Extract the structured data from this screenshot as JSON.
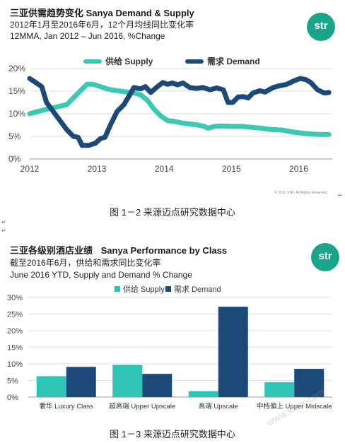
{
  "chart1": {
    "title": "三亚供需趋势变化 Sanya Demand & Supply",
    "subtitle_cn": "2012年1月至2016年6月，12个月均线同比变化率",
    "subtitle_en": "12MMA, Jan 2012 – Jun 2016, %Change",
    "logo_text": "str",
    "copyright": "© 2016 STR. All Rights Reserved.",
    "caption": "图 1－2  来源迈点研究数据中心",
    "colors": {
      "supply": "#3cc9b4",
      "demand": "#1b4a7a"
    }
  },
  "chart2": {
    "title_cn": "三亚各级别酒店业绩",
    "title_en": "Sanya Performance by Class",
    "subtitle_cn": "截至2016年6月，供给和需求同比变化率",
    "subtitle_en": "June 2016 YTD, Supply and Demand  % Change",
    "logo_text": "str",
    "caption": "图 1－3  来源迈点研究数据中心",
    "colors": {
      "supply": "#2ec4b6",
      "demand": "#1b4a7a"
    }
  },
  "watermark": "www.xxxx.com",
  "chart_data": [
    {
      "type": "line",
      "x_ticks": [
        "2012",
        "2013",
        "2014",
        "2015",
        "2016"
      ],
      "ylim": [
        0,
        20
      ],
      "y_ticks": [
        "0%",
        "5%",
        "10%",
        "15%",
        "20%"
      ],
      "grid": true,
      "legend_position": "top-center",
      "series": [
        {
          "name": "供给 Supply",
          "points": [
            [
              2012.0,
              10
            ],
            [
              2012.1,
              10.4
            ],
            [
              2012.25,
              11
            ],
            [
              2012.4,
              11.5
            ],
            [
              2012.55,
              12
            ],
            [
              2012.65,
              13.5
            ],
            [
              2012.75,
              15
            ],
            [
              2012.85,
              16.5
            ],
            [
              2012.95,
              16.5
            ],
            [
              2013.05,
              16
            ],
            [
              2013.15,
              15.5
            ],
            [
              2013.25,
              15.2
            ],
            [
              2013.35,
              15
            ],
            [
              2013.45,
              14.8
            ],
            [
              2013.55,
              14.6
            ],
            [
              2013.65,
              14.2
            ],
            [
              2013.75,
              13
            ],
            [
              2013.85,
              11
            ],
            [
              2013.95,
              9.5
            ],
            [
              2014.05,
              8.5
            ],
            [
              2014.15,
              8.3
            ],
            [
              2014.25,
              8
            ],
            [
              2014.4,
              7.7
            ],
            [
              2014.5,
              7.5
            ],
            [
              2014.6,
              7.2
            ],
            [
              2014.65,
              6.8
            ],
            [
              2014.75,
              7.2
            ],
            [
              2014.85,
              7.3
            ],
            [
              2015.0,
              7.2
            ],
            [
              2015.15,
              7.2
            ],
            [
              2015.3,
              7
            ],
            [
              2015.45,
              6.8
            ],
            [
              2015.6,
              6.5
            ],
            [
              2015.75,
              6.4
            ],
            [
              2015.9,
              6
            ],
            [
              2016.05,
              5.7
            ],
            [
              2016.2,
              5.5
            ],
            [
              2016.35,
              5.4
            ],
            [
              2016.45,
              5.4
            ]
          ]
        },
        {
          "name": "需求 Demand",
          "points": [
            [
              2012.0,
              17.8
            ],
            [
              2012.08,
              17
            ],
            [
              2012.18,
              16
            ],
            [
              2012.25,
              12.5
            ],
            [
              2012.35,
              10.5
            ],
            [
              2012.45,
              8.5
            ],
            [
              2012.55,
              6.5
            ],
            [
              2012.65,
              5
            ],
            [
              2012.72,
              4.8
            ],
            [
              2012.78,
              3
            ],
            [
              2012.88,
              3
            ],
            [
              2012.98,
              3.5
            ],
            [
              2013.05,
              4.5
            ],
            [
              2013.12,
              4.8
            ],
            [
              2013.2,
              7.5
            ],
            [
              2013.3,
              10.5
            ],
            [
              2013.4,
              12
            ],
            [
              2013.5,
              14.5
            ],
            [
              2013.55,
              15.8
            ],
            [
              2013.65,
              15.5
            ],
            [
              2013.72,
              16
            ],
            [
              2013.8,
              14.7
            ],
            [
              2013.9,
              16
            ],
            [
              2013.98,
              16.9
            ],
            [
              2014.05,
              16.5
            ],
            [
              2014.12,
              16.8
            ],
            [
              2014.2,
              16.4
            ],
            [
              2014.28,
              16.8
            ],
            [
              2014.38,
              15.8
            ],
            [
              2014.48,
              15.6
            ],
            [
              2014.58,
              15.8
            ],
            [
              2014.68,
              15.3
            ],
            [
              2014.78,
              15.7
            ],
            [
              2014.88,
              15.3
            ],
            [
              2014.95,
              12.5
            ],
            [
              2015.02,
              12.5
            ],
            [
              2015.1,
              13.7
            ],
            [
              2015.18,
              13.8
            ],
            [
              2015.25,
              13.5
            ],
            [
              2015.32,
              14.6
            ],
            [
              2015.42,
              15.1
            ],
            [
              2015.5,
              14.8
            ],
            [
              2015.62,
              15.8
            ],
            [
              2015.72,
              16.2
            ],
            [
              2015.82,
              16.5
            ],
            [
              2015.92,
              17.2
            ],
            [
              2016.02,
              17.8
            ],
            [
              2016.1,
              17.6
            ],
            [
              2016.18,
              16.9
            ],
            [
              2016.28,
              15.3
            ],
            [
              2016.38,
              14.6
            ],
            [
              2016.45,
              14.7
            ]
          ]
        }
      ]
    },
    {
      "type": "bar",
      "categories": [
        "奢华 Luxury Class",
        "超高端 Upper Upscale",
        "高端 Upscale",
        "中档偏上 Upper Midscale"
      ],
      "ylim": [
        0,
        30
      ],
      "y_ticks": [
        "0%",
        "5%",
        "10%",
        "15%",
        "20%",
        "25%",
        "30%"
      ],
      "grid": true,
      "legend_position": "top-center",
      "series": [
        {
          "name": "供给 Supply",
          "values": [
            6.3,
            9.7,
            1.8,
            4.5
          ]
        },
        {
          "name": "需求 Demand",
          "values": [
            9.1,
            7.0,
            27.2,
            8.5
          ]
        }
      ]
    }
  ]
}
